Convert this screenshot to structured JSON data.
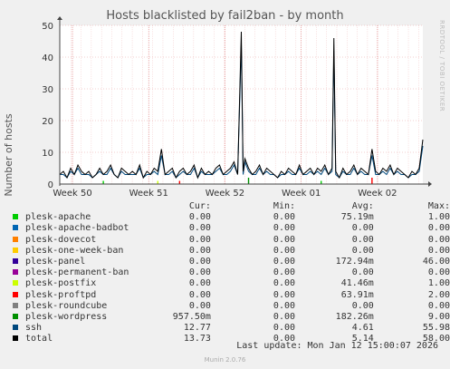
{
  "chart_data": {
    "type": "line",
    "title": "Hosts blacklisted by fail2ban - by month",
    "ylabel": "Number of hosts",
    "ylim": [
      0,
      50
    ],
    "yticks": [
      0,
      10,
      20,
      30,
      40,
      50
    ],
    "xticks": [
      "Week 50",
      "Week 51",
      "Week 52",
      "Week 01",
      "Week 02"
    ],
    "grid": true,
    "series_names": [
      "plesk-apache",
      "plesk-apache-badbot",
      "plesk-dovecot",
      "plesk-one-week-ban",
      "plesk-panel",
      "plesk-permanent-ban",
      "plesk-postfix",
      "plesk-proftpd",
      "plesk-roundcube",
      "plesk-wordpress",
      "ssh",
      "total"
    ],
    "total_x": [
      0.0,
      0.01,
      0.02,
      0.03,
      0.04,
      0.05,
      0.06,
      0.07,
      0.08,
      0.09,
      0.1,
      0.11,
      0.12,
      0.13,
      0.14,
      0.15,
      0.16,
      0.17,
      0.18,
      0.19,
      0.2,
      0.21,
      0.22,
      0.23,
      0.24,
      0.25,
      0.26,
      0.27,
      0.28,
      0.29,
      0.3,
      0.31,
      0.32,
      0.33,
      0.34,
      0.35,
      0.36,
      0.37,
      0.38,
      0.39,
      0.4,
      0.41,
      0.42,
      0.43,
      0.44,
      0.45,
      0.46,
      0.47,
      0.48,
      0.49,
      0.5,
      0.505,
      0.51,
      0.52,
      0.53,
      0.54,
      0.55,
      0.56,
      0.57,
      0.58,
      0.59,
      0.6,
      0.61,
      0.62,
      0.63,
      0.64,
      0.65,
      0.66,
      0.67,
      0.68,
      0.69,
      0.7,
      0.71,
      0.72,
      0.73,
      0.74,
      0.75,
      0.755,
      0.76,
      0.77,
      0.78,
      0.79,
      0.8,
      0.81,
      0.82,
      0.83,
      0.84,
      0.85,
      0.86,
      0.87,
      0.88,
      0.89,
      0.9,
      0.91,
      0.92,
      0.93,
      0.94,
      0.95,
      0.96,
      0.97,
      0.98,
      0.99,
      1.0
    ],
    "total_y": [
      3,
      4,
      2,
      5,
      3,
      6,
      4,
      3,
      4,
      2,
      3,
      5,
      3,
      4,
      6,
      3,
      2,
      5,
      4,
      3,
      4,
      3,
      6,
      2,
      4,
      3,
      5,
      4,
      11,
      3,
      4,
      5,
      2,
      4,
      5,
      3,
      4,
      6,
      2,
      5,
      3,
      4,
      3,
      5,
      6,
      3,
      4,
      5,
      7,
      3,
      48,
      4,
      8,
      5,
      3,
      4,
      6,
      3,
      5,
      4,
      3,
      2,
      4,
      3,
      5,
      4,
      3,
      6,
      3,
      4,
      5,
      3,
      5,
      4,
      6,
      3,
      5,
      46,
      4,
      2,
      5,
      3,
      4,
      6,
      3,
      5,
      4,
      3,
      11,
      4,
      3,
      5,
      4,
      6,
      3,
      5,
      4,
      3,
      2,
      4,
      3,
      5,
      14
    ],
    "ssh_y": [
      3,
      3,
      2,
      4,
      3,
      5,
      3,
      3,
      3,
      2,
      3,
      4,
      3,
      3,
      5,
      3,
      2,
      4,
      3,
      3,
      3,
      3,
      5,
      2,
      3,
      3,
      4,
      3,
      9,
      3,
      3,
      4,
      2,
      3,
      4,
      3,
      3,
      5,
      2,
      4,
      3,
      3,
      3,
      4,
      5,
      3,
      3,
      4,
      6,
      3,
      44,
      3,
      7,
      4,
      3,
      3,
      5,
      3,
      4,
      3,
      3,
      2,
      3,
      3,
      4,
      3,
      3,
      5,
      3,
      3,
      4,
      3,
      4,
      3,
      5,
      3,
      4,
      42,
      3,
      2,
      4,
      3,
      3,
      5,
      3,
      4,
      3,
      3,
      9,
      3,
      3,
      4,
      3,
      5,
      3,
      4,
      3,
      3,
      2,
      3,
      3,
      4,
      12
    ],
    "colors": {
      "plesk-apache": "#00cc00",
      "plesk-apache-badbot": "#0066b3",
      "plesk-dovecot": "#ff8000",
      "plesk-one-week-ban": "#ffcc00",
      "plesk-panel": "#330099",
      "plesk-permanent-ban": "#990099",
      "plesk-postfix": "#ccff00",
      "plesk-proftpd": "#ff0000",
      "plesk-roundcube": "#808080",
      "plesk-wordpress": "#008f00",
      "ssh": "#00487d",
      "total": "#000000"
    }
  },
  "legend": {
    "headers": {
      "cur": "Cur:",
      "min": "Min:",
      "avg": "Avg:",
      "max": "Max:"
    },
    "rows": [
      {
        "name": "plesk-apache",
        "color": "#00cc00",
        "cur": "0.00",
        "min": "0.00",
        "avg": "75.19m",
        "max": "1.00"
      },
      {
        "name": "plesk-apache-badbot",
        "color": "#0066b3",
        "cur": "0.00",
        "min": "0.00",
        "avg": "0.00",
        "max": "0.00"
      },
      {
        "name": "plesk-dovecot",
        "color": "#ff8000",
        "cur": "0.00",
        "min": "0.00",
        "avg": "0.00",
        "max": "0.00"
      },
      {
        "name": "plesk-one-week-ban",
        "color": "#ffcc00",
        "cur": "0.00",
        "min": "0.00",
        "avg": "0.00",
        "max": "0.00"
      },
      {
        "name": "plesk-panel",
        "color": "#330099",
        "cur": "0.00",
        "min": "0.00",
        "avg": "172.94m",
        "max": "46.00"
      },
      {
        "name": "plesk-permanent-ban",
        "color": "#990099",
        "cur": "0.00",
        "min": "0.00",
        "avg": "0.00",
        "max": "0.00"
      },
      {
        "name": "plesk-postfix",
        "color": "#ccff00",
        "cur": "0.00",
        "min": "0.00",
        "avg": "41.46m",
        "max": "1.00"
      },
      {
        "name": "plesk-proftpd",
        "color": "#ff0000",
        "cur": "0.00",
        "min": "0.00",
        "avg": "63.91m",
        "max": "2.00"
      },
      {
        "name": "plesk-roundcube",
        "color": "#808080",
        "cur": "0.00",
        "min": "0.00",
        "avg": "0.00",
        "max": "0.00"
      },
      {
        "name": "plesk-wordpress",
        "color": "#008f00",
        "cur": "957.50m",
        "min": "0.00",
        "avg": "182.26m",
        "max": "9.00"
      },
      {
        "name": "ssh",
        "color": "#00487d",
        "cur": "12.77",
        "min": "0.00",
        "avg": "4.61",
        "max": "55.98"
      },
      {
        "name": "total",
        "color": "#000000",
        "cur": "13.73",
        "min": "0.00",
        "avg": "5.14",
        "max": "58.00"
      }
    ]
  },
  "last_update": "Last update: Mon Jan 12 15:00:07 2026",
  "version": "Munin 2.0.76",
  "watermark": "RRDTOOL / TOBI OETIKER"
}
